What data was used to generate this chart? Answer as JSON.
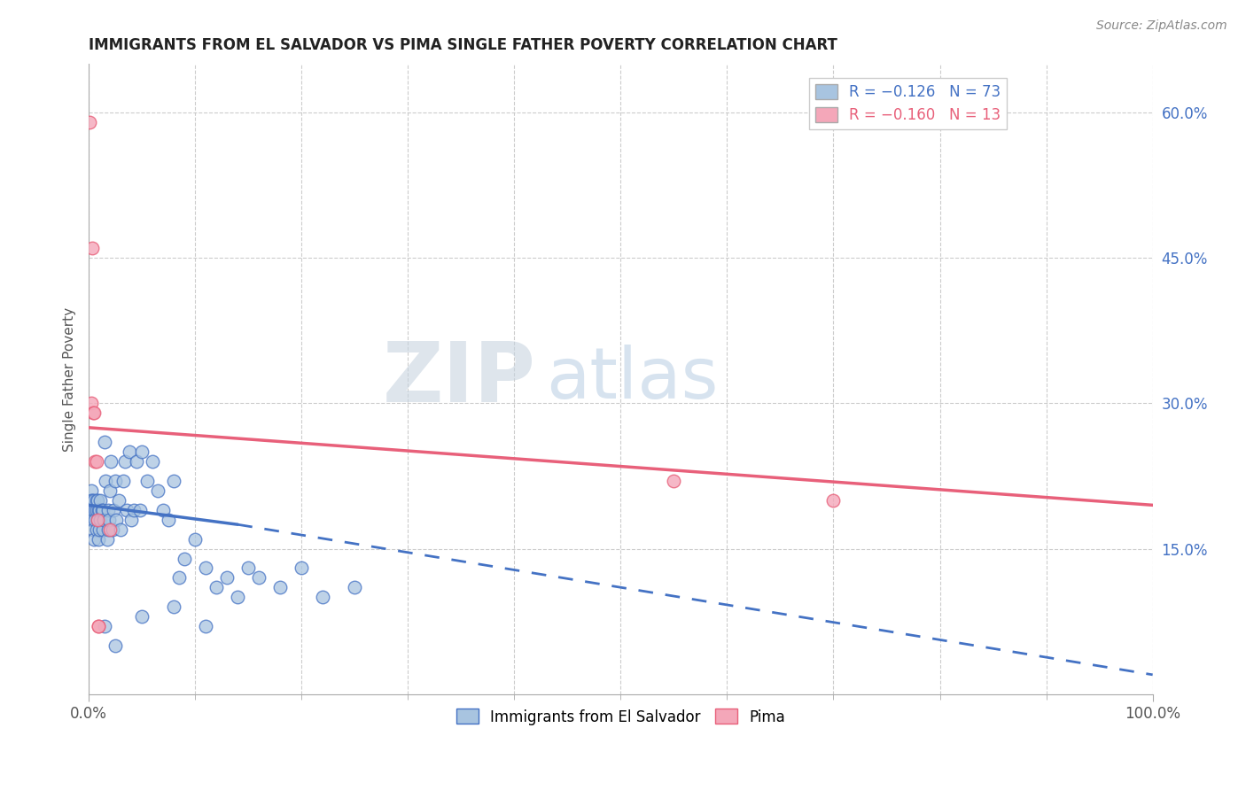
{
  "title": "IMMIGRANTS FROM EL SALVADOR VS PIMA SINGLE FATHER POVERTY CORRELATION CHART",
  "source": "Source: ZipAtlas.com",
  "ylabel": "Single Father Poverty",
  "xlim": [
    0,
    1.0
  ],
  "ylim": [
    0,
    0.65
  ],
  "xtick_major": [
    0.0,
    1.0
  ],
  "xtick_major_labels": [
    "0.0%",
    "100.0%"
  ],
  "xtick_minor": [
    0.1,
    0.2,
    0.3,
    0.4,
    0.5,
    0.6,
    0.7,
    0.8,
    0.9
  ],
  "yticks_right": [
    0.15,
    0.3,
    0.45,
    0.6
  ],
  "ytick_right_labels": [
    "15.0%",
    "30.0%",
    "45.0%",
    "60.0%"
  ],
  "legend_blue_R": "R = −0.126",
  "legend_blue_N": "N = 73",
  "legend_pink_R": "R = −0.160",
  "legend_pink_N": "N = 13",
  "legend_label_blue": "Immigrants from El Salvador",
  "legend_label_pink": "Pima",
  "color_blue": "#a8c4e0",
  "color_pink": "#f4a7b9",
  "color_line_blue": "#4472c4",
  "color_line_pink": "#e8607a",
  "watermark_zip": "ZIP",
  "watermark_atlas": "atlas",
  "blue_x": [
    0.001,
    0.002,
    0.002,
    0.003,
    0.003,
    0.004,
    0.004,
    0.005,
    0.005,
    0.006,
    0.006,
    0.007,
    0.007,
    0.007,
    0.008,
    0.008,
    0.009,
    0.009,
    0.01,
    0.01,
    0.011,
    0.011,
    0.012,
    0.013,
    0.013,
    0.014,
    0.015,
    0.016,
    0.017,
    0.018,
    0.018,
    0.019,
    0.02,
    0.021,
    0.022,
    0.023,
    0.025,
    0.026,
    0.028,
    0.03,
    0.032,
    0.034,
    0.036,
    0.038,
    0.04,
    0.042,
    0.045,
    0.048,
    0.05,
    0.055,
    0.06,
    0.065,
    0.07,
    0.075,
    0.08,
    0.085,
    0.09,
    0.1,
    0.11,
    0.12,
    0.13,
    0.14,
    0.15,
    0.16,
    0.18,
    0.2,
    0.22,
    0.25,
    0.015,
    0.025,
    0.05,
    0.08,
    0.11
  ],
  "blue_y": [
    0.19,
    0.21,
    0.2,
    0.18,
    0.2,
    0.17,
    0.19,
    0.2,
    0.16,
    0.19,
    0.18,
    0.2,
    0.17,
    0.19,
    0.18,
    0.2,
    0.19,
    0.16,
    0.17,
    0.19,
    0.18,
    0.2,
    0.19,
    0.17,
    0.19,
    0.18,
    0.26,
    0.22,
    0.16,
    0.17,
    0.19,
    0.18,
    0.21,
    0.24,
    0.17,
    0.19,
    0.22,
    0.18,
    0.2,
    0.17,
    0.22,
    0.24,
    0.19,
    0.25,
    0.18,
    0.19,
    0.24,
    0.19,
    0.25,
    0.22,
    0.24,
    0.21,
    0.19,
    0.18,
    0.22,
    0.12,
    0.14,
    0.16,
    0.13,
    0.11,
    0.12,
    0.1,
    0.13,
    0.12,
    0.11,
    0.13,
    0.1,
    0.11,
    0.07,
    0.05,
    0.08,
    0.09,
    0.07
  ],
  "pink_x": [
    0.001,
    0.002,
    0.003,
    0.004,
    0.005,
    0.006,
    0.007,
    0.008,
    0.009,
    0.02,
    0.55,
    0.7,
    0.009
  ],
  "pink_y": [
    0.59,
    0.3,
    0.46,
    0.29,
    0.29,
    0.24,
    0.24,
    0.18,
    0.07,
    0.17,
    0.22,
    0.2,
    0.07
  ],
  "blue_line_x0": 0.0,
  "blue_line_y0": 0.195,
  "blue_line_x1": 0.14,
  "blue_line_y1": 0.175,
  "blue_line_dash_x0": 0.14,
  "blue_line_dash_y0": 0.175,
  "blue_line_dash_x1": 1.0,
  "blue_line_dash_y1": 0.02,
  "pink_line_x0": 0.0,
  "pink_line_y0": 0.275,
  "pink_line_x1": 1.0,
  "pink_line_y1": 0.195
}
